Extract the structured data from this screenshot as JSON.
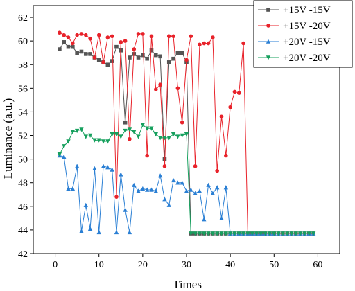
{
  "chart_data": {
    "type": "line",
    "title": "",
    "xlabel": "Times",
    "ylabel": "Luminance (a.u.)",
    "xlim": [
      -5,
      65
    ],
    "ylim": [
      42,
      63
    ],
    "xticks": [
      0,
      10,
      20,
      30,
      40,
      50,
      60
    ],
    "yticks": [
      42,
      44,
      46,
      48,
      50,
      52,
      54,
      56,
      58,
      60,
      62
    ],
    "grid": false,
    "legend_position": "top-right",
    "series": [
      {
        "name": "+15V -15V",
        "color": "#555555",
        "marker": "square",
        "x": [
          1,
          2,
          3,
          4,
          5,
          6,
          7,
          8,
          9,
          10,
          11,
          12,
          13,
          14,
          15,
          16,
          17,
          18,
          19,
          20,
          21,
          22,
          23,
          24,
          25,
          26,
          27,
          28,
          29,
          30,
          31,
          32,
          33,
          34,
          35,
          36,
          37,
          38,
          39,
          40,
          41,
          42,
          43,
          44,
          45,
          46,
          47,
          48,
          49,
          50,
          51,
          52,
          53,
          54,
          55,
          56,
          57,
          58,
          59
        ],
        "y": [
          59.3,
          59.9,
          59.5,
          59.5,
          59.0,
          59.1,
          58.9,
          58.9,
          58.6,
          58.4,
          58.2,
          58.0,
          58.3,
          59.5,
          59.2,
          53.1,
          58.6,
          58.9,
          58.6,
          58.8,
          58.5,
          59.2,
          58.8,
          58.7,
          50.0,
          58.2,
          58.5,
          59.0,
          59.0,
          58.2,
          43.7,
          43.7,
          43.7,
          43.7,
          43.7,
          43.7,
          43.7,
          43.7,
          43.7,
          43.7,
          43.7,
          43.7,
          43.7,
          43.7,
          43.7,
          43.7,
          43.7,
          43.7,
          43.7,
          43.7,
          43.7,
          43.7,
          43.7,
          43.7,
          43.7,
          43.7,
          43.7,
          43.7,
          43.7
        ]
      },
      {
        "name": "+15V -20V",
        "color": "#e8222a",
        "marker": "circle",
        "x": [
          1,
          2,
          3,
          4,
          5,
          6,
          7,
          8,
          9,
          10,
          11,
          12,
          13,
          14,
          15,
          16,
          17,
          18,
          19,
          20,
          21,
          22,
          23,
          24,
          25,
          26,
          27,
          28,
          29,
          30,
          31,
          32,
          33,
          34,
          35,
          36,
          37,
          38,
          39,
          40,
          41,
          42,
          43,
          44,
          45,
          46,
          47,
          48,
          49,
          50,
          51,
          52,
          53,
          54,
          55,
          56,
          57,
          58,
          59
        ],
        "y": [
          60.7,
          60.5,
          60.3,
          59.8,
          60.5,
          60.6,
          60.5,
          60.2,
          58.6,
          60.5,
          58.2,
          60.3,
          60.4,
          46.8,
          59.9,
          60.0,
          51.7,
          59.3,
          60.6,
          60.6,
          50.3,
          60.4,
          55.9,
          56.3,
          49.4,
          60.4,
          60.4,
          56.0,
          53.1,
          58.4,
          60.4,
          49.4,
          59.7,
          59.8,
          59.8,
          60.3,
          49.0,
          53.6,
          50.3,
          54.4,
          55.7,
          55.6,
          59.8,
          43.7,
          43.7,
          43.7,
          43.7,
          43.7,
          43.7,
          43.7,
          43.7,
          43.7,
          43.7,
          43.7,
          43.7,
          43.7,
          43.7,
          43.7,
          43.7
        ]
      },
      {
        "name": "+20V -15V",
        "color": "#2a7fd4",
        "marker": "triangle-up",
        "x": [
          1,
          2,
          3,
          4,
          5,
          6,
          7,
          8,
          9,
          10,
          11,
          12,
          13,
          14,
          15,
          16,
          17,
          18,
          19,
          20,
          21,
          22,
          23,
          24,
          25,
          26,
          27,
          28,
          29,
          30,
          31,
          32,
          33,
          34,
          35,
          36,
          37,
          38,
          39,
          40,
          41,
          42,
          43,
          44,
          45,
          46,
          47,
          48,
          49,
          50,
          51,
          52,
          53,
          54,
          55,
          56,
          57,
          58,
          59
        ],
        "y": [
          50.3,
          50.2,
          47.5,
          47.5,
          49.4,
          43.9,
          46.1,
          44.1,
          49.2,
          43.8,
          49.4,
          49.3,
          49.1,
          43.8,
          48.7,
          45.7,
          43.8,
          47.8,
          47.3,
          47.5,
          47.4,
          47.4,
          47.3,
          48.6,
          46.6,
          46.1,
          48.2,
          48.0,
          48.0,
          47.3,
          47.4,
          47.1,
          47.3,
          44.9,
          47.8,
          47.1,
          47.6,
          45.0,
          47.6,
          43.7,
          43.7,
          43.7,
          43.7,
          43.7,
          43.7,
          43.7,
          43.7,
          43.7,
          43.7,
          43.7,
          43.7,
          43.7,
          43.7,
          43.7,
          43.7,
          43.7,
          43.7,
          43.7,
          43.7
        ]
      },
      {
        "name": "+20V -20V",
        "color": "#17a05e",
        "marker": "triangle-down",
        "x": [
          1,
          2,
          3,
          4,
          5,
          6,
          7,
          8,
          9,
          10,
          11,
          12,
          13,
          14,
          15,
          16,
          17,
          18,
          19,
          20,
          21,
          22,
          23,
          24,
          25,
          26,
          27,
          28,
          29,
          30,
          31,
          32,
          33,
          34,
          35,
          36,
          37,
          38,
          39,
          40,
          41,
          42,
          43,
          44,
          45,
          46,
          47,
          48,
          49,
          50,
          51,
          52,
          53,
          54,
          55,
          56,
          57,
          58,
          59
        ],
        "y": [
          50.4,
          51.1,
          51.5,
          52.3,
          52.4,
          52.5,
          51.9,
          52.0,
          51.6,
          51.6,
          51.5,
          51.5,
          52.1,
          52.1,
          51.9,
          52.4,
          52.5,
          52.3,
          51.9,
          52.9,
          52.6,
          52.6,
          52.1,
          51.8,
          51.8,
          51.8,
          52.1,
          51.9,
          52.0,
          52.1,
          43.7,
          43.7,
          43.7,
          43.7,
          43.7,
          43.7,
          43.7,
          43.7,
          43.7,
          43.7,
          43.7,
          43.7,
          43.7,
          43.7,
          43.7,
          43.7,
          43.7,
          43.7,
          43.7,
          43.7,
          43.7,
          43.7,
          43.7,
          43.7,
          43.7,
          43.7,
          43.7,
          43.7,
          43.7
        ]
      }
    ]
  }
}
